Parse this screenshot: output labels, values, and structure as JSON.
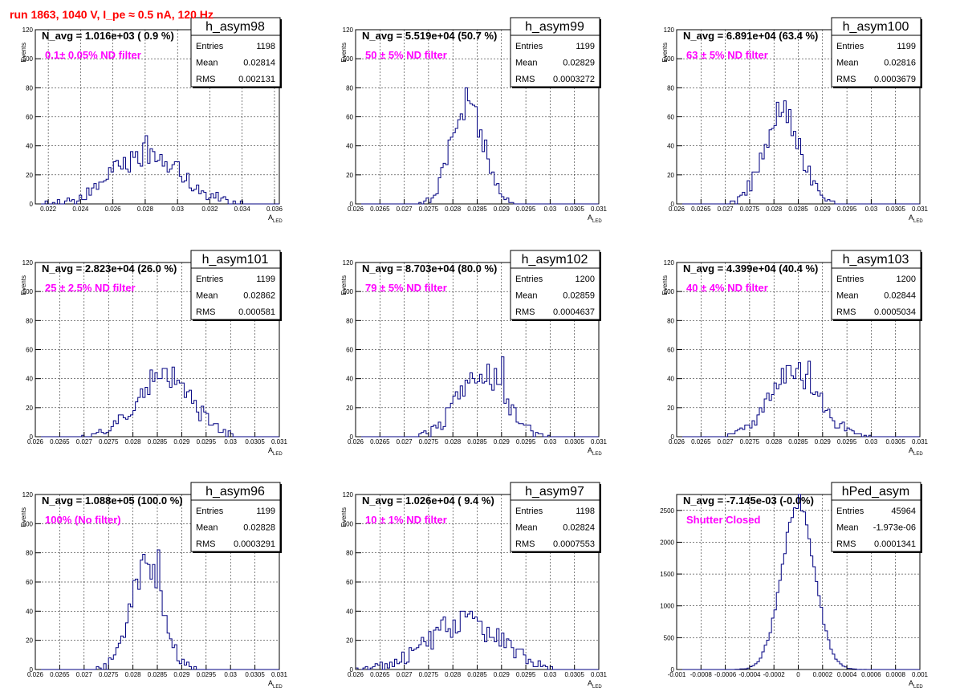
{
  "run_title": "run 1863,  1040 V, I_pe ≈ 0.5 nA, 120 Hz",
  "chart_data": [
    {
      "type": "histogram",
      "name": "h_asym98",
      "nline": "N_avg = 1.016e+03 ( 0.9 %)",
      "filter": "0.1± 0.05% ND filter",
      "stats": {
        "Entries": "1198",
        "Mean": "0.02814",
        "RMS": "0.002131"
      },
      "xlabel": "A_LED",
      "ylabel": "Events",
      "xlim": [
        0.0212,
        0.0363
      ],
      "ylim": [
        0,
        120
      ],
      "xticks": [
        0.022,
        0.024,
        0.026,
        0.028,
        0.03,
        0.032,
        0.034,
        0.036
      ],
      "xtick_labels": [
        "0.022",
        "0.024",
        "0.026",
        "0.028",
        "0.03",
        "0.032",
        "0.034",
        "0.036"
      ],
      "yticks": [
        0,
        20,
        40,
        60,
        80,
        100,
        120
      ],
      "peak": {
        "x": 0.028,
        "y": 47
      },
      "mean": 0.02814,
      "sigma": 0.002131,
      "amp": 34,
      "seed": 98
    },
    {
      "type": "histogram",
      "name": "h_asym99",
      "nline": "N_avg = 5.519e+04 (50.7 %)",
      "filter": "50 ± 5% ND filter",
      "stats": {
        "Entries": "1199",
        "Mean": "0.02829",
        "RMS": "0.0003272"
      },
      "xlabel": "A_LED",
      "ylabel": "Events",
      "xlim": [
        0.026,
        0.031
      ],
      "ylim": [
        0,
        120
      ],
      "xticks": [
        0.026,
        0.0265,
        0.027,
        0.0275,
        0.028,
        0.0285,
        0.029,
        0.0295,
        0.03,
        0.0305,
        0.031
      ],
      "xtick_labels": [
        "0.026",
        "0.0265",
        "0.027",
        "0.0275",
        "0.028",
        "0.0285",
        "0.029",
        "0.0295",
        "0.03",
        "0.0305",
        "0.031"
      ],
      "yticks": [
        0,
        20,
        40,
        60,
        80,
        100,
        120
      ],
      "peak": {
        "x": 0.0283,
        "y": 80
      },
      "mean": 0.02829,
      "sigma": 0.0003272,
      "amp": 72,
      "seed": 99
    },
    {
      "type": "histogram",
      "name": "h_asym100",
      "nline": "N_avg = 6.891e+04 (63.4 %)",
      "filter": "63 ± 5% ND filter",
      "stats": {
        "Entries": "1199",
        "Mean": "0.02816",
        "RMS": "0.0003679"
      },
      "xlabel": "A_LED",
      "ylabel": "Events",
      "xlim": [
        0.026,
        0.031
      ],
      "ylim": [
        0,
        120
      ],
      "xticks": [
        0.026,
        0.0265,
        0.027,
        0.0275,
        0.028,
        0.0285,
        0.029,
        0.0295,
        0.03,
        0.0305,
        0.031
      ],
      "xtick_labels": [
        "0.026",
        "0.0265",
        "0.027",
        "0.0275",
        "0.028",
        "0.0285",
        "0.029",
        "0.0295",
        "0.03",
        "0.0305",
        "0.031"
      ],
      "yticks": [
        0,
        20,
        40,
        60,
        80,
        100,
        120
      ],
      "peak": {
        "x": 0.0282,
        "y": 71
      },
      "mean": 0.02816,
      "sigma": 0.0003679,
      "amp": 64,
      "seed": 100
    },
    {
      "type": "histogram",
      "name": "h_asym101",
      "nline": "N_avg = 2.823e+04 (26.0 %)",
      "filter": "25 ± 2.5% ND filter",
      "stats": {
        "Entries": "1199",
        "Mean": "0.02862",
        "RMS": "0.000581"
      },
      "xlabel": "A_LED",
      "ylabel": "Events",
      "xlim": [
        0.026,
        0.031
      ],
      "ylim": [
        0,
        120
      ],
      "xticks": [
        0.026,
        0.0265,
        0.027,
        0.0275,
        0.028,
        0.0285,
        0.029,
        0.0295,
        0.03,
        0.0305,
        0.031
      ],
      "xtick_labels": [
        "0.026",
        "0.0265",
        "0.027",
        "0.0275",
        "0.028",
        "0.0285",
        "0.029",
        "0.0295",
        "0.03",
        "0.0305",
        "0.031"
      ],
      "yticks": [
        0,
        20,
        40,
        60,
        80,
        100,
        120
      ],
      "peak": {
        "x": 0.0286,
        "y": 47
      },
      "mean": 0.02862,
      "sigma": 0.000581,
      "amp": 41,
      "seed": 101
    },
    {
      "type": "histogram",
      "name": "h_asym102",
      "nline": "N_avg = 8.703e+04 (80.0 %)",
      "filter": "79 ± 5% ND filter",
      "stats": {
        "Entries": "1200",
        "Mean": "0.02859",
        "RMS": "0.0004637"
      },
      "xlabel": "A_LED",
      "ylabel": "Events",
      "xlim": [
        0.026,
        0.031
      ],
      "ylim": [
        0,
        120
      ],
      "xticks": [
        0.026,
        0.0265,
        0.027,
        0.0275,
        0.028,
        0.0285,
        0.029,
        0.0295,
        0.03,
        0.0305,
        0.031
      ],
      "xtick_labels": [
        "0.026",
        "0.0265",
        "0.027",
        "0.0275",
        "0.028",
        "0.0285",
        "0.029",
        "0.0295",
        "0.03",
        "0.0305",
        "0.031"
      ],
      "yticks": [
        0,
        20,
        40,
        60,
        80,
        100,
        120
      ],
      "peak": {
        "x": 0.029,
        "y": 55
      },
      "mean": 0.02859,
      "sigma": 0.0004637,
      "amp": 45,
      "seed": 102
    },
    {
      "type": "histogram",
      "name": "h_asym103",
      "nline": "N_avg = 4.399e+04 (40.4 %)",
      "filter": "40 ± 4% ND filter",
      "stats": {
        "Entries": "1200",
        "Mean": "0.02844",
        "RMS": "0.0005034"
      },
      "xlabel": "A_LED",
      "ylabel": "Events",
      "xlim": [
        0.026,
        0.031
      ],
      "ylim": [
        0,
        120
      ],
      "xticks": [
        0.026,
        0.0265,
        0.027,
        0.0275,
        0.028,
        0.0285,
        0.029,
        0.0295,
        0.03,
        0.0305,
        0.031
      ],
      "xtick_labels": [
        "0.026",
        "0.0265",
        "0.027",
        "0.0275",
        "0.028",
        "0.0285",
        "0.029",
        "0.0295",
        "0.03",
        "0.0305",
        "0.031"
      ],
      "yticks": [
        0,
        20,
        40,
        60,
        80,
        100,
        120
      ],
      "peak": {
        "x": 0.0287,
        "y": 52
      },
      "mean": 0.02844,
      "sigma": 0.0005034,
      "amp": 44,
      "seed": 103
    },
    {
      "type": "histogram",
      "name": "h_asym96",
      "nline": "N_avg = 1.088e+05 (100.0 %)",
      "filter": "100% (No filter)",
      "stats": {
        "Entries": "1199",
        "Mean": "0.02828",
        "RMS": "0.0003291"
      },
      "xlabel": "A_LED",
      "ylabel": "Events",
      "xlim": [
        0.026,
        0.031
      ],
      "ylim": [
        0,
        120
      ],
      "xticks": [
        0.026,
        0.0265,
        0.027,
        0.0275,
        0.028,
        0.0285,
        0.029,
        0.0295,
        0.03,
        0.0305,
        0.031
      ],
      "xtick_labels": [
        "0.026",
        "0.0265",
        "0.027",
        "0.0275",
        "0.028",
        "0.0285",
        "0.029",
        "0.0295",
        "0.03",
        "0.0305",
        "0.031"
      ],
      "yticks": [
        0,
        20,
        40,
        60,
        80,
        100,
        120
      ],
      "peak": {
        "x": 0.0285,
        "y": 82
      },
      "mean": 0.02828,
      "sigma": 0.0003291,
      "amp": 72,
      "seed": 96
    },
    {
      "type": "histogram",
      "name": "h_asym97",
      "nline": "N_avg = 1.026e+04 ( 9.4 %)",
      "filter": "10 ± 1% ND filter",
      "stats": {
        "Entries": "1198",
        "Mean": "0.02824",
        "RMS": "0.0007553"
      },
      "xlabel": "A_LED",
      "ylabel": "Events",
      "xlim": [
        0.026,
        0.031
      ],
      "ylim": [
        0,
        120
      ],
      "xticks": [
        0.026,
        0.0265,
        0.027,
        0.0275,
        0.028,
        0.0285,
        0.029,
        0.0295,
        0.03,
        0.0305,
        0.031
      ],
      "xtick_labels": [
        "0.026",
        "0.0265",
        "0.027",
        "0.0275",
        "0.028",
        "0.0285",
        "0.029",
        "0.0295",
        "0.03",
        "0.0305",
        "0.031"
      ],
      "yticks": [
        0,
        20,
        40,
        60,
        80,
        100,
        120
      ],
      "peak": {
        "x": 0.0282,
        "y": 40
      },
      "mean": 0.02824,
      "sigma": 0.0007553,
      "amp": 32,
      "seed": 97
    },
    {
      "type": "histogram",
      "name": "hPed_asym",
      "nline": "N_avg = -7.145e-03 (-0.0%)",
      "filter": "Shutter Closed",
      "stats": {
        "Entries": "45964",
        "Mean": "-1.973e-06",
        "RMS": "0.0001341"
      },
      "xlabel": "A_LED",
      "ylabel": "",
      "xlim": [
        -0.001,
        0.001
      ],
      "ylim": [
        0,
        2750
      ],
      "xticks": [
        -0.001,
        -0.0008,
        -0.0006,
        -0.0004,
        -0.0002,
        0,
        0.0002,
        0.0004,
        0.0006,
        0.0008,
        0.001
      ],
      "xtick_labels": [
        "-0.001",
        "-0.0008",
        "-0.0006",
        "-0.0004",
        "-0.0002",
        "0",
        "0.0002",
        "0.0004",
        "0.0006",
        "0.0008",
        "0.001"
      ],
      "yticks": [
        0,
        500,
        1000,
        1500,
        2000,
        2500
      ],
      "peak": {
        "x": 0.0,
        "y": 2750
      },
      "mean": -1.973e-06,
      "sigma": 0.0001341,
      "amp": 2600,
      "seed": 7
    }
  ]
}
